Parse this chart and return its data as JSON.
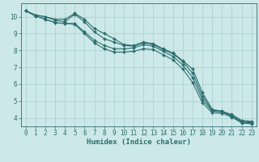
{
  "xlabel": "Humidex (Indice chaleur)",
  "bg_color": "#cce8e8",
  "grid_color": "#aacfcf",
  "line_color": "#2d6e6e",
  "xlim": [
    -0.5,
    23.5
  ],
  "ylim": [
    3.5,
    10.8
  ],
  "xticks": [
    0,
    1,
    2,
    3,
    4,
    5,
    6,
    7,
    8,
    9,
    10,
    11,
    12,
    13,
    14,
    15,
    16,
    17,
    18,
    19,
    20,
    21,
    22,
    23
  ],
  "yticks": [
    4,
    5,
    6,
    7,
    8,
    9,
    10
  ],
  "series": [
    [
      10.35,
      10.1,
      10.0,
      9.85,
      9.85,
      10.2,
      9.85,
      9.3,
      9.0,
      8.7,
      8.35,
      8.3,
      8.5,
      8.4,
      8.1,
      7.85,
      7.4,
      6.9,
      5.5,
      4.5,
      4.4,
      4.2,
      3.85,
      3.8
    ],
    [
      10.35,
      10.1,
      10.0,
      9.8,
      9.7,
      10.15,
      9.7,
      9.1,
      8.7,
      8.5,
      8.3,
      8.25,
      8.45,
      8.35,
      8.05,
      7.8,
      7.35,
      6.65,
      5.3,
      4.45,
      4.4,
      4.15,
      3.8,
      3.75
    ],
    [
      10.35,
      10.05,
      9.85,
      9.65,
      9.6,
      9.6,
      9.1,
      8.6,
      8.3,
      8.1,
      8.1,
      8.15,
      8.35,
      8.25,
      7.95,
      7.65,
      7.15,
      6.4,
      5.1,
      4.4,
      4.35,
      4.1,
      3.75,
      3.7
    ],
    [
      10.35,
      10.05,
      9.85,
      9.65,
      9.6,
      9.55,
      9.0,
      8.45,
      8.1,
      7.9,
      7.9,
      7.95,
      8.1,
      8.05,
      7.75,
      7.45,
      6.9,
      6.1,
      4.9,
      4.3,
      4.28,
      4.05,
      3.7,
      3.65
    ]
  ],
  "tick_fontsize": 5.5,
  "label_fontsize": 6.5
}
